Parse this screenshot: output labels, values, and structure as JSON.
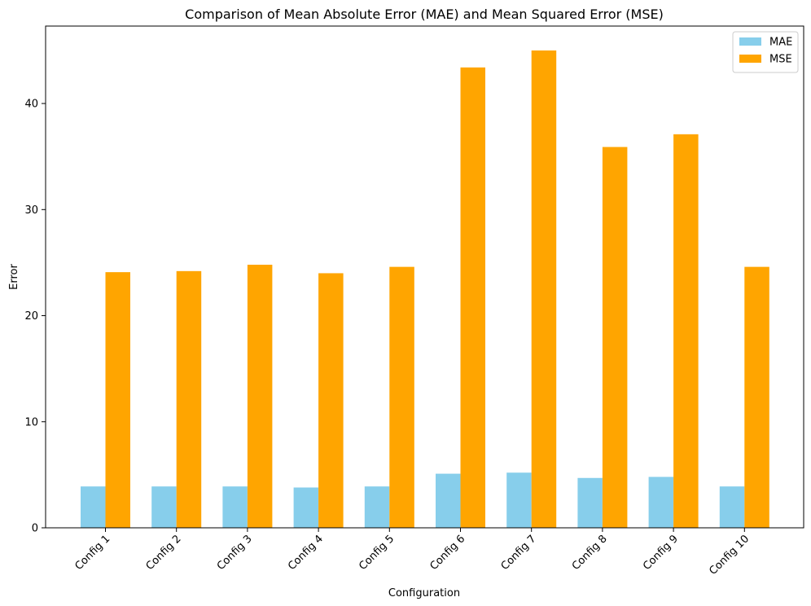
{
  "chart_data": {
    "type": "bar",
    "title": "Comparison of Mean Absolute Error (MAE) and Mean Squared Error (MSE)",
    "xlabel": "Configuration",
    "ylabel": "Error",
    "categories": [
      "Config 1",
      "Config 2",
      "Config 3",
      "Config 4",
      "Config 5",
      "Config 6",
      "Config 7",
      "Config 8",
      "Config 9",
      "Config 10"
    ],
    "series": [
      {
        "name": "MAE",
        "color": "#87CEEB",
        "values": [
          3.9,
          3.9,
          3.9,
          3.8,
          3.9,
          5.1,
          5.2,
          4.7,
          4.8,
          3.9
        ]
      },
      {
        "name": "MSE",
        "color": "#FFA500",
        "values": [
          24.1,
          24.2,
          24.8,
          24.0,
          24.6,
          43.4,
          45.0,
          35.9,
          37.1,
          24.6
        ]
      }
    ],
    "ylim": [
      0,
      47.3
    ],
    "yticks": [
      0,
      10,
      20,
      30,
      40
    ],
    "grid": false,
    "legend_position": "top-right"
  }
}
